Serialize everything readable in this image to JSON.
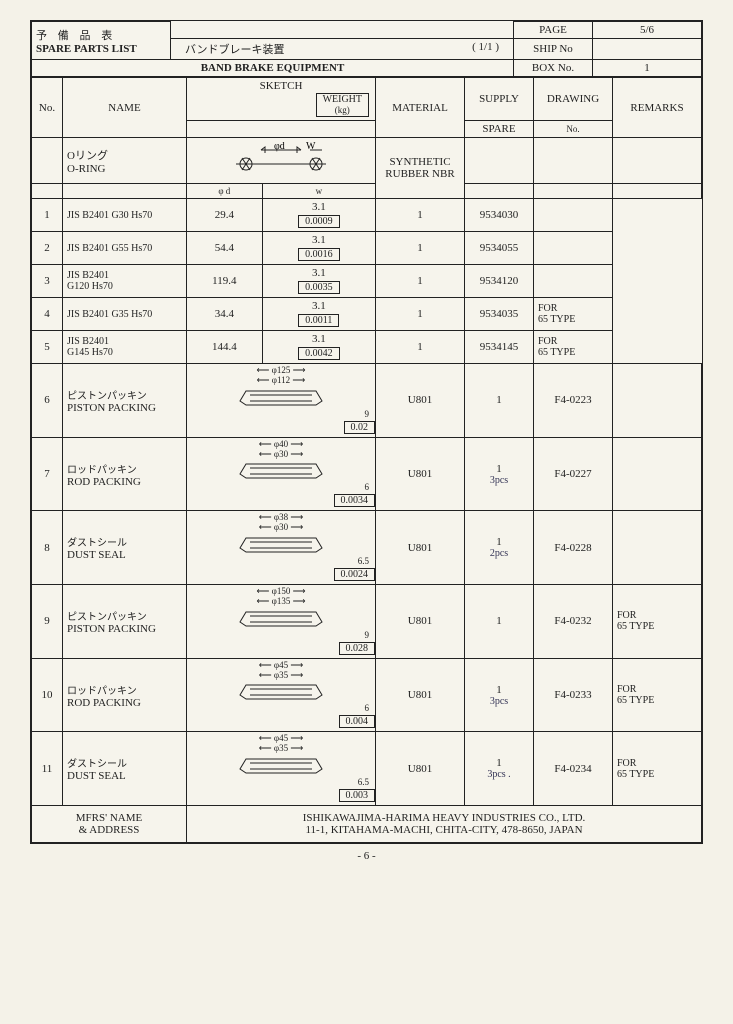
{
  "header": {
    "title_jp": "予 備 品 表",
    "title_en": "SPARE PARTS LIST",
    "page_label": "PAGE",
    "page_value": "5/6",
    "subtitle_jp": "バンドブレーキ装置",
    "subtitle_count": "( 1/1 )",
    "ship_label": "SHIP No",
    "ship_value": "",
    "equipment": "BAND BRAKE EQUIPMENT",
    "box_label": "BOX No.",
    "box_value": "1"
  },
  "columns": {
    "no": "No.",
    "name": "NAME",
    "sketch": "SKETCH",
    "weight": "WEIGHT",
    "weight_unit": "(kg)",
    "material": "MATERIAL",
    "supply": "SUPPLY",
    "spare": "SPARE",
    "drawing": "DRAWING",
    "drawing_no": "No.",
    "remarks": "REMARKS"
  },
  "oring": {
    "name_jp": "Oリング",
    "name_en": "O-RING",
    "dim_label": "φ d   W",
    "col_d": "φ d",
    "col_w": "w",
    "material": "SYNTHETIC RUBBER NBR",
    "rows": [
      {
        "no": "1",
        "spec": "JIS B2401 G30 Hs70",
        "d": "29.4",
        "w": "3.1",
        "kg": "0.0009",
        "spare": "1",
        "drw": "9534030",
        "rem": ""
      },
      {
        "no": "2",
        "spec": "JIS B2401 G55 Hs70",
        "d": "54.4",
        "w": "3.1",
        "kg": "0.0016",
        "spare": "1",
        "drw": "9534055",
        "rem": ""
      },
      {
        "no": "3",
        "spec": "JIS B2401\nG120 Hs70",
        "d": "119.4",
        "w": "3.1",
        "kg": "0.0035",
        "spare": "1",
        "drw": "9534120",
        "rem": ""
      },
      {
        "no": "4",
        "spec": "JIS B2401 G35 Hs70",
        "d": "34.4",
        "w": "3.1",
        "kg": "0.0011",
        "spare": "1",
        "drw": "9534035",
        "rem": "FOR\n65 TYPE"
      },
      {
        "no": "5",
        "spec": "JIS B2401\nG145 Hs70",
        "d": "144.4",
        "w": "3.1",
        "kg": "0.0042",
        "spare": "1",
        "drw": "9534145",
        "rem": "FOR\n65 TYPE"
      }
    ]
  },
  "packings": [
    {
      "no": "6",
      "jp": "ピストンパッキン",
      "en": "PISTON PACKING",
      "d1": "φ125",
      "d2": "φ112",
      "h": "9",
      "kg": "0.02",
      "mat": "U801",
      "spare": "1",
      "hand": "",
      "drw": "F4-0223",
      "rem": ""
    },
    {
      "no": "7",
      "jp": "ロッドパッキン",
      "en": "ROD PACKING",
      "d1": "φ40",
      "d2": "φ30",
      "h": "6",
      "kg": "0.0034",
      "mat": "U801",
      "spare": "1",
      "hand": "3pcs",
      "drw": "F4-0227",
      "rem": ""
    },
    {
      "no": "8",
      "jp": "ダストシール",
      "en": "DUST SEAL",
      "d1": "φ38",
      "d2": "φ30",
      "h": "6.5",
      "kg": "0.0024",
      "mat": "U801",
      "spare": "1",
      "hand": "2pcs",
      "drw": "F4-0228",
      "rem": ""
    },
    {
      "no": "9",
      "jp": "ピストンパッキン",
      "en": "PISTON PACKING",
      "d1": "φ150",
      "d2": "φ135",
      "h": "9",
      "kg": "0.028",
      "mat": "U801",
      "spare": "1",
      "hand": "",
      "drw": "F4-0232",
      "rem": "FOR\n65 TYPE"
    },
    {
      "no": "10",
      "jp": "ロッドパッキン",
      "en": "ROD PACKING",
      "d1": "φ45",
      "d2": "φ35",
      "h": "6",
      "kg": "0.004",
      "mat": "U801",
      "spare": "1",
      "hand": "3pcs",
      "drw": "F4-0233",
      "rem": "FOR\n65 TYPE"
    },
    {
      "no": "11",
      "jp": "ダストシール",
      "en": "DUST SEAL",
      "d1": "φ45",
      "d2": "φ35",
      "h": "6.5",
      "kg": "0.003",
      "mat": "U801",
      "spare": "1",
      "hand": "3pcs .",
      "drw": "F4-0234",
      "rem": "FOR\n65 TYPE"
    }
  ],
  "footer": {
    "label": "MFRS' NAME\n& ADDRESS",
    "line1": "ISHIKAWAJIMA-HARIMA HEAVY INDUSTRIES CO., LTD.",
    "line2": "11-1, KITAHAMA-MACHI, CHITA-CITY, 478-8650, JAPAN"
  },
  "page_footer": "- 6 -"
}
